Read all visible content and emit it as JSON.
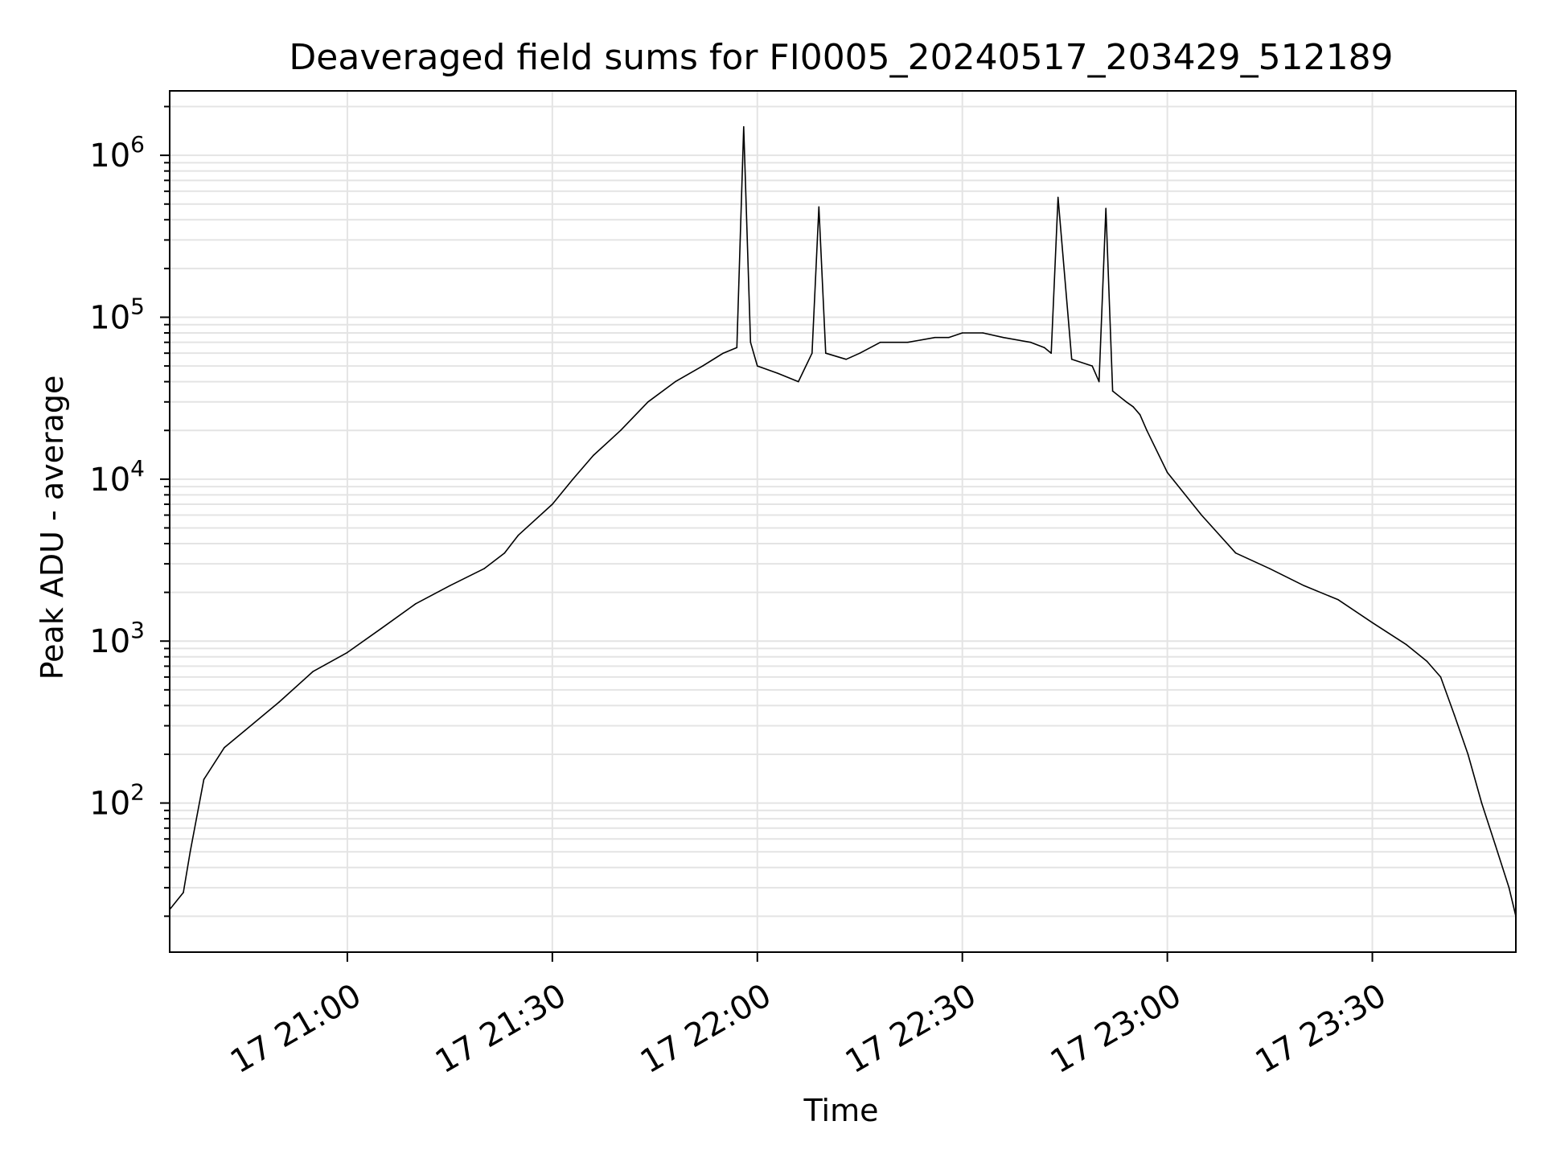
{
  "chart_data": {
    "type": "line",
    "title": "Deaveraged field sums for FI0005_20240517_203429_512189",
    "xlabel": "Time",
    "ylabel": "Peak ADU - average",
    "xscale": "time",
    "yscale": "log",
    "xlim": [
      "2024-05-17 20:34",
      "2024-05-17 23:51"
    ],
    "ylim": [
      12,
      2500000
    ],
    "grid": "on (major and minor y gridlines, major x gridlines)",
    "legend": "none",
    "line_color": "#000000",
    "xticks": [
      {
        "label": "17 21:00",
        "value": "2024-05-17 21:00"
      },
      {
        "label": "17 21:30",
        "value": "2024-05-17 21:30"
      },
      {
        "label": "17 22:00",
        "value": "2024-05-17 22:00"
      },
      {
        "label": "17 22:30",
        "value": "2024-05-17 22:30"
      },
      {
        "label": "17 23:00",
        "value": "2024-05-17 23:00"
      },
      {
        "label": "17 23:30",
        "value": "2024-05-17 23:30"
      }
    ],
    "yticks": [
      {
        "base": "10",
        "exp": "2",
        "value": 100
      },
      {
        "base": "10",
        "exp": "3",
        "value": 1000
      },
      {
        "base": "10",
        "exp": "4",
        "value": 10000
      },
      {
        "base": "10",
        "exp": "5",
        "value": 100000
      },
      {
        "base": "10",
        "exp": "6",
        "value": 1000000
      }
    ],
    "series": [
      {
        "x": [
          "20:34",
          "20:36",
          "20:37",
          "20:39",
          "20:42",
          "20:45",
          "20:50",
          "20:55",
          "21:00",
          "21:05",
          "21:10",
          "21:15",
          "21:20",
          "21:23",
          "21:25",
          "21:30",
          "21:33",
          "21:36",
          "21:40",
          "21:44",
          "21:48",
          "21:52",
          "21:55",
          "21:57",
          "21:58",
          "21:59",
          "22:00",
          "22:03",
          "22:06",
          "22:08",
          "22:09",
          "22:10",
          "22:13",
          "22:15",
          "22:18",
          "22:22",
          "22:26",
          "22:28",
          "22:30",
          "22:33",
          "22:36",
          "22:40",
          "22:42",
          "22:43",
          "22:44",
          "22:46",
          "22:49",
          "22:50",
          "22:51",
          "22:52",
          "22:54",
          "22:55",
          "22:56",
          "22:57",
          "23:00",
          "23:05",
          "23:10",
          "23:15",
          "23:20",
          "23:25",
          "23:30",
          "23:35",
          "23:38",
          "23:40",
          "23:42",
          "23:44",
          "23:46",
          "23:48",
          "23:50",
          "23:51"
        ],
        "y": [
          22,
          28,
          50,
          140,
          220,
          280,
          420,
          650,
          850,
          1200,
          1700,
          2200,
          2800,
          3500,
          4500,
          7000,
          10000,
          14000,
          20000,
          30000,
          40000,
          50000,
          60000,
          65000,
          1500000,
          70000,
          50000,
          45000,
          40000,
          60000,
          480000,
          60000,
          55000,
          60000,
          70000,
          70000,
          75000,
          75000,
          80000,
          80000,
          75000,
          70000,
          65000,
          60000,
          550000,
          55000,
          50000,
          40000,
          470000,
          35000,
          30000,
          28000,
          25000,
          20000,
          11000,
          6000,
          3500,
          2800,
          2200,
          1800,
          1300,
          950,
          750,
          600,
          350,
          200,
          100,
          55,
          30,
          20
        ]
      }
    ]
  }
}
